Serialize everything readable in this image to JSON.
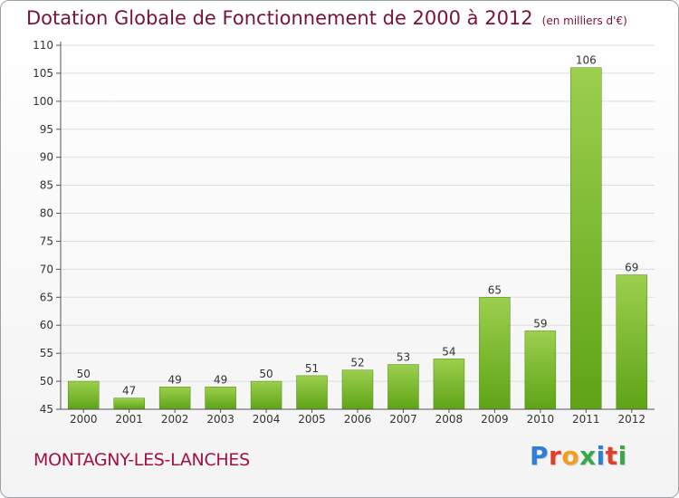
{
  "title": "Dotation Globale de Fonctionnement de 2000 à 2012",
  "unit_note": "(en milliers d'€)",
  "commune": "MONTAGNY-LES-LANCHES",
  "brand": {
    "letters": [
      "P",
      "r",
      "o",
      "x",
      "i",
      "t",
      "i"
    ],
    "colors": [
      "#2f7fd6",
      "#e0402b",
      "#f0a020",
      "#3aa84a",
      "#2f7fd6",
      "#e0402b",
      "#3aa84a"
    ]
  },
  "chart_data": {
    "type": "bar",
    "categories": [
      "2000",
      "2001",
      "2002",
      "2003",
      "2004",
      "2005",
      "2006",
      "2007",
      "2008",
      "2009",
      "2010",
      "2011",
      "2012"
    ],
    "values": [
      50,
      47,
      49,
      49,
      50,
      51,
      52,
      53,
      54,
      65,
      59,
      106,
      69
    ],
    "ylim": [
      45,
      110
    ],
    "yticks": [
      45,
      50,
      55,
      60,
      65,
      70,
      75,
      80,
      85,
      90,
      95,
      100,
      105,
      110
    ],
    "grid": true,
    "bar_color": "#7dbb2f"
  }
}
